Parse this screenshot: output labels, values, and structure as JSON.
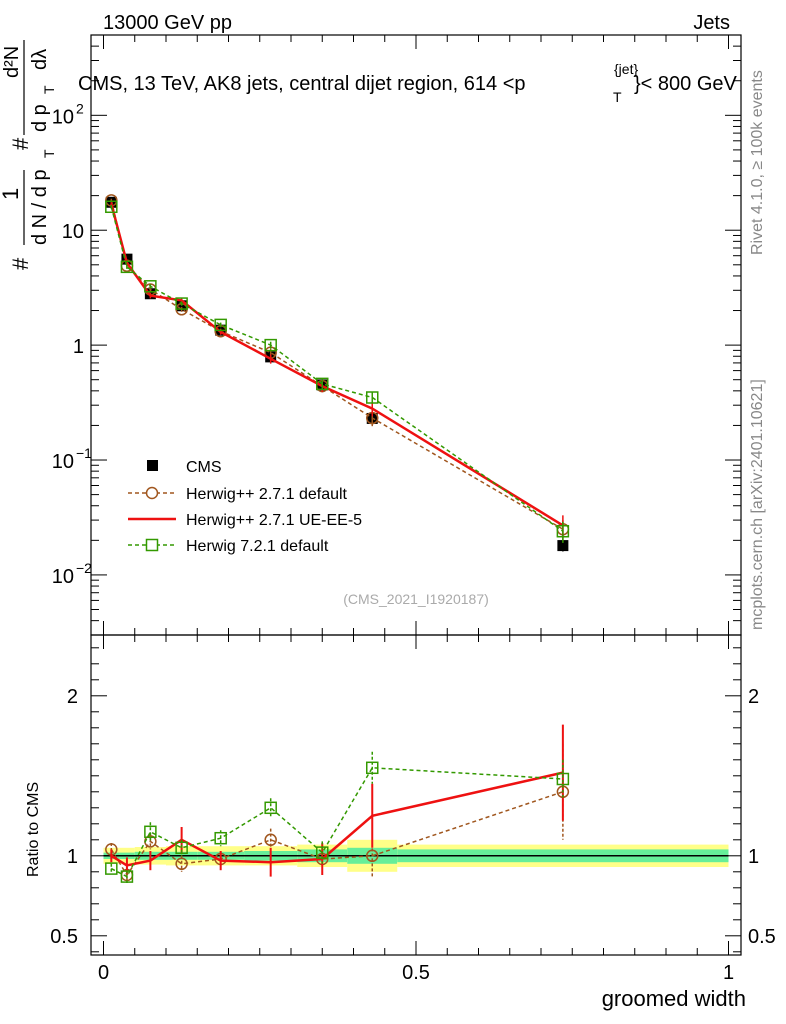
{
  "header": {
    "left": "13000 GeV pp",
    "right": "Jets",
    "title_main": "CMS, 13 TeV, AK8 jets, central dijet region, 614 <p",
    "title_sub": "T",
    "title_sup": "{jet}",
    "title_end": "}< 800 GeV"
  },
  "side": {
    "rivet": "Rivet 4.1.0, ≥ 100k events",
    "mcplots": "mcplots.cern.ch [arXiv:2401.10621]"
  },
  "analysis_id": "(CMS_2021_I1920187)",
  "ylabel_main": {
    "hash1": "#",
    "one": "1",
    "dN_pT": "d N / d p",
    "T": "T",
    "hash2": "#",
    "d2N": "d²N",
    "dpT_dl": "d p",
    "T2": "T",
    "dl": "dλ"
  },
  "ylabel_ratio": "Ratio to CMS",
  "colors": {
    "cms": "#000000",
    "herwigpp_default": "#a0561e",
    "herwigpp_ueee5": "#ee1111",
    "herwig721": "#339900",
    "band_inner": "#66ee99",
    "band_outer": "#ffff88"
  },
  "chart_data": [
    {
      "type": "scatter",
      "panel": "main",
      "yscale": "log",
      "xlim": [
        -0.02,
        1.02
      ],
      "ylim": [
        0.003,
        500
      ],
      "x_ticks": [
        0,
        0.5,
        1
      ],
      "y_tick_labels": [
        {
          "value": 0.01,
          "base": "10",
          "exp": "−2"
        },
        {
          "value": 0.1,
          "base": "10",
          "exp": "−1"
        },
        {
          "value": 1,
          "base": "1",
          "exp": ""
        },
        {
          "value": 10,
          "base": "10",
          "exp": ""
        },
        {
          "value": 100,
          "base": "10",
          "exp": "2"
        }
      ],
      "x": [
        0.0125,
        0.0375,
        0.075,
        0.125,
        0.1875,
        0.2675,
        0.35,
        0.43,
        0.735
      ],
      "series": [
        {
          "name": "CMS",
          "marker": "square-filled",
          "values": [
            17.5,
            5.6,
            2.8,
            2.2,
            1.35,
            0.79,
            0.45,
            0.23,
            0.018
          ],
          "errors": [
            1.0,
            0.3,
            0.15,
            0.1,
            0.06,
            0.05,
            0.04,
            0.03,
            0.002
          ]
        },
        {
          "name": "Herwig++ 2.7.1 default",
          "marker": "circle-open",
          "style": "dashed",
          "values": [
            18.2,
            4.9,
            3.05,
            2.05,
            1.32,
            0.86,
            0.44,
            0.232,
            0.025
          ],
          "errors": [
            0.6,
            0.2,
            0.15,
            0.1,
            0.07,
            0.07,
            0.05,
            0.035,
            0.005
          ]
        },
        {
          "name": "Herwig++ 2.7.1 UE-EE-5",
          "marker": "none",
          "style": "solid",
          "values": [
            17.0,
            5.2,
            2.7,
            2.45,
            1.3,
            0.76,
            0.44,
            0.28,
            0.027
          ],
          "errors": [
            0.6,
            0.2,
            0.15,
            0.1,
            0.07,
            0.07,
            0.05,
            0.04,
            0.006
          ]
        },
        {
          "name": "Herwig 7.2.1 default",
          "marker": "square-open",
          "style": "dashed",
          "values": [
            16.0,
            4.8,
            3.25,
            2.3,
            1.5,
            1.0,
            0.46,
            0.35,
            0.024
          ],
          "errors": [
            0.6,
            0.2,
            0.15,
            0.1,
            0.07,
            0.07,
            0.05,
            0.04,
            0.005
          ]
        }
      ]
    },
    {
      "type": "scatter",
      "panel": "ratio",
      "ylabel": "Ratio to CMS",
      "xlabel": "groomed width",
      "xlim": [
        -0.02,
        1.02
      ],
      "ylim": [
        0.38,
        2.38
      ],
      "x_ticks": [
        0,
        0.5,
        1
      ],
      "x_tick_labels": [
        "0",
        "0.5",
        "1"
      ],
      "y_ticks": [
        0.5,
        1,
        2
      ],
      "y_tick_labels": [
        "0.5",
        "1",
        "2"
      ],
      "bands": [
        {
          "x_range": [
            0.0,
            0.025
          ],
          "inner": 0.02,
          "outer": 0.05
        },
        {
          "x_range": [
            0.025,
            0.05
          ],
          "inner": 0.02,
          "outer": 0.05
        },
        {
          "x_range": [
            0.05,
            0.1
          ],
          "inner": 0.025,
          "outer": 0.055
        },
        {
          "x_range": [
            0.1,
            0.15
          ],
          "inner": 0.025,
          "outer": 0.06
        },
        {
          "x_range": [
            0.15,
            0.225
          ],
          "inner": 0.025,
          "outer": 0.06
        },
        {
          "x_range": [
            0.225,
            0.31
          ],
          "inner": 0.03,
          "outer": 0.06
        },
        {
          "x_range": [
            0.31,
            0.39
          ],
          "inner": 0.04,
          "outer": 0.07
        },
        {
          "x_range": [
            0.39,
            0.47
          ],
          "inner": 0.05,
          "outer": 0.1
        },
        {
          "x_range": [
            0.47,
            1.0
          ],
          "inner": 0.04,
          "outer": 0.07
        }
      ],
      "series": [
        {
          "name": "Herwig++ 2.7.1 default",
          "x": [
            0.0125,
            0.0375,
            0.075,
            0.125,
            0.1875,
            0.2675,
            0.35,
            0.43,
            0.735
          ],
          "values": [
            1.04,
            0.88,
            1.09,
            0.95,
            0.98,
            1.1,
            0.98,
            1.0,
            1.4
          ],
          "errors": [
            0.04,
            0.05,
            0.05,
            0.05,
            0.05,
            0.07,
            0.08,
            0.14,
            0.3
          ]
        },
        {
          "name": "Herwig++ 2.7.1 UE-EE-5",
          "x": [
            0.0125,
            0.0375,
            0.075,
            0.125,
            0.1875,
            0.2675,
            0.35,
            0.43,
            0.735
          ],
          "values": [
            1.0,
            0.94,
            0.97,
            1.1,
            0.97,
            0.96,
            0.98,
            1.25,
            1.52
          ],
          "errors": [
            0.04,
            0.05,
            0.06,
            0.08,
            0.06,
            0.09,
            0.1,
            0.2,
            0.3
          ]
        },
        {
          "name": "Herwig 7.2.1 default",
          "x": [
            0.0125,
            0.0375,
            0.075,
            0.125,
            0.1875,
            0.2675,
            0.35,
            0.43,
            0.735
          ],
          "values": [
            0.92,
            0.87,
            1.15,
            1.05,
            1.11,
            1.3,
            1.02,
            1.55,
            1.48
          ],
          "errors": [
            0.03,
            0.04,
            0.06,
            0.05,
            0.05,
            0.06,
            0.07,
            0.1,
            0.12
          ]
        }
      ]
    }
  ]
}
